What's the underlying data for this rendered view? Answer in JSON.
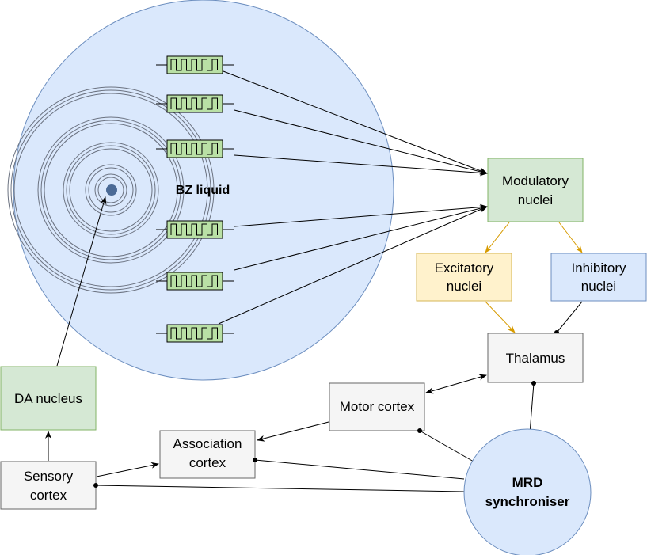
{
  "liquid": {
    "label": "BZ liquid"
  },
  "nodes": {
    "modulatory": [
      "Modulatory",
      "nuclei"
    ],
    "excitatory": [
      "Excitatory",
      "nuclei"
    ],
    "inhibitory": [
      "Inhibitory",
      "nuclei"
    ],
    "thalamus": [
      "Thalamus"
    ],
    "motor": [
      "Motor cortex"
    ],
    "association": [
      "Association",
      "cortex"
    ],
    "da": [
      "DA nucleus"
    ],
    "sensory": [
      "Sensory",
      "cortex"
    ],
    "mrd": [
      "MRD",
      "synchroniser"
    ]
  },
  "colors": {
    "liquid_fill": "#dae8fc",
    "liquid_stroke": "#6c8ebf",
    "green_fill": "#d5e8d4",
    "green_stroke": "#82b366",
    "yellow_fill": "#fff2cc",
    "yellow_stroke": "#d6b656",
    "blue_fill": "#dae8fc",
    "blue_stroke": "#6c8ebf",
    "gray_fill": "#f5f5f5",
    "gray_stroke": "#666666",
    "orange_edge": "#d79b00",
    "sensor_fill": "#b9e0a5",
    "dot": "#4a6a96"
  }
}
